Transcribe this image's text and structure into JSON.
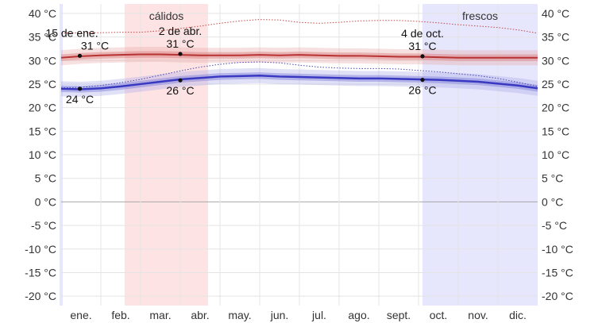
{
  "chart_data": {
    "type": "line",
    "title": "",
    "xlabel": "",
    "ylabel": "",
    "unit": "°C",
    "ylim": [
      -22,
      42
    ],
    "y_ticks": [
      -20,
      -15,
      -10,
      -5,
      0,
      5,
      10,
      15,
      20,
      25,
      30,
      35,
      40
    ],
    "y_tick_labels": [
      "-20 °C",
      "-15 °C",
      "-10 °C",
      "-5 °C",
      "0 °C",
      "5 °C",
      "10 °C",
      "15 °C",
      "20 °C",
      "25 °C",
      "30 °C",
      "35 °C",
      "40 °C"
    ],
    "months": [
      "ene.",
      "feb.",
      "mar.",
      "abr.",
      "may.",
      "jun.",
      "jul.",
      "ago.",
      "sept.",
      "oct.",
      "nov.",
      "dic."
    ],
    "grid": true,
    "seasons": [
      {
        "label": "cálidos",
        "start_month": 1.6,
        "end_month": 3.7,
        "color": "#fde3e3"
      },
      {
        "label": "frescos",
        "start_month": 9.1,
        "end_month": 12.0,
        "color": "#e6e6fc"
      }
    ],
    "series": [
      {
        "kind": "average_high",
        "color": "#b83232",
        "x": [
          0.0,
          0.5,
          1.0,
          1.5,
          2.0,
          2.5,
          3.0,
          3.5,
          4.0,
          4.5,
          5.0,
          5.5,
          6.0,
          6.5,
          7.0,
          7.5,
          8.0,
          8.5,
          9.0,
          9.5,
          10.0,
          10.5,
          11.0,
          11.5,
          12.0
        ],
        "values": [
          30.6,
          30.9,
          31.1,
          31.2,
          31.3,
          31.3,
          31.2,
          31.1,
          31.1,
          31.1,
          31.2,
          31.1,
          31.2,
          31.1,
          31.0,
          31.0,
          30.9,
          30.8,
          30.8,
          30.7,
          30.6,
          30.6,
          30.6,
          30.6,
          30.6
        ]
      },
      {
        "kind": "average_low",
        "color": "#3838c0",
        "x": [
          0.0,
          0.5,
          1.0,
          1.5,
          2.0,
          2.5,
          3.0,
          3.5,
          4.0,
          4.5,
          5.0,
          5.5,
          6.0,
          6.5,
          7.0,
          7.5,
          8.0,
          8.5,
          9.0,
          9.5,
          10.0,
          10.5,
          11.0,
          11.5,
          12.0
        ],
        "values": [
          24.0,
          23.9,
          24.1,
          24.5,
          25.0,
          25.5,
          26.0,
          26.3,
          26.6,
          26.7,
          26.8,
          26.6,
          26.5,
          26.4,
          26.3,
          26.2,
          26.2,
          26.1,
          26.0,
          25.9,
          25.7,
          25.5,
          25.1,
          24.7,
          24.1
        ]
      },
      {
        "kind": "p90_high",
        "color": "#c44b4b",
        "x": [
          0.0,
          0.5,
          1.0,
          1.5,
          2.0,
          2.5,
          3.0,
          3.5,
          4.0,
          4.5,
          5.0,
          5.5,
          6.0,
          6.5,
          7.0,
          7.5,
          8.0,
          8.5,
          9.0,
          9.5,
          10.0,
          10.5,
          11.0,
          11.5,
          12.0
        ],
        "values": [
          35.8,
          35.9,
          35.9,
          36.0,
          36.0,
          36.3,
          36.8,
          37.3,
          37.9,
          38.4,
          38.7,
          38.6,
          38.1,
          37.9,
          38.1,
          38.4,
          38.5,
          38.5,
          38.3,
          38.0,
          37.6,
          37.3,
          37.0,
          36.5,
          35.8
        ]
      },
      {
        "kind": "p10_low",
        "color": "#4848b0",
        "x": [
          0.0,
          0.5,
          1.0,
          1.5,
          2.0,
          2.5,
          3.0,
          3.5,
          4.0,
          4.5,
          5.0,
          5.5,
          6.0,
          6.5,
          7.0,
          7.5,
          8.0,
          8.5,
          9.0,
          9.5,
          10.0,
          10.5,
          11.0,
          11.5,
          12.0
        ],
        "values": [
          24.2,
          24.3,
          24.7,
          25.3,
          26.0,
          26.9,
          27.8,
          28.6,
          29.2,
          29.6,
          29.7,
          29.5,
          29.0,
          28.6,
          28.4,
          28.3,
          28.3,
          28.2,
          27.9,
          27.6,
          27.2,
          26.8,
          26.2,
          25.4,
          24.5
        ]
      }
    ],
    "annotations": [
      {
        "date": "15 de ene.",
        "value": "31 °C",
        "x": 0.47,
        "y": 31
      },
      {
        "date": "",
        "value": "24 °C",
        "x": 0.47,
        "y": 24
      },
      {
        "date": "2 de abr.",
        "value": "31 °C",
        "x": 3.0,
        "y": 31.4
      },
      {
        "date": "",
        "value": "26 °C",
        "x": 3.0,
        "y": 25.8
      },
      {
        "date": "4 de oct.",
        "value": "31 °C",
        "x": 9.1,
        "y": 30.9
      },
      {
        "date": "",
        "value": "26 °C",
        "x": 9.1,
        "y": 25.9
      }
    ]
  }
}
